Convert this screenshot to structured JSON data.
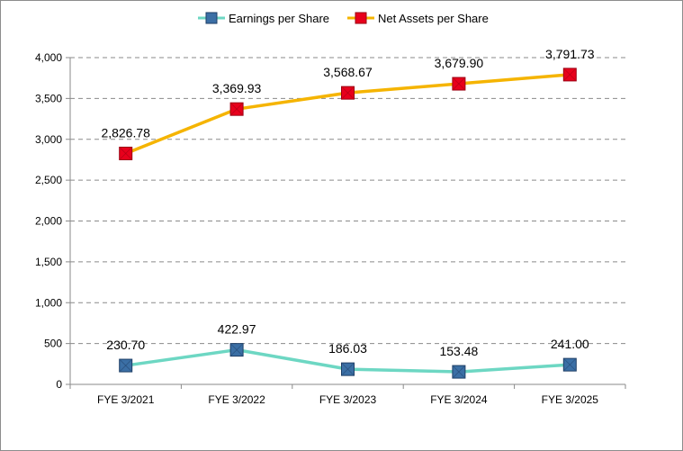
{
  "chart_data": {
    "type": "line",
    "title": "",
    "xlabel": "",
    "ylabel": "",
    "categories": [
      "FYE 3/2021",
      "FYE 3/2022",
      "FYE 3/2023",
      "FYE 3/2024",
      "FYE 3/2025"
    ],
    "ylim": [
      0,
      4000
    ],
    "yticks": [
      0,
      500,
      1000,
      1500,
      2000,
      2500,
      3000,
      3500,
      4000
    ],
    "ytick_labels": [
      "0",
      "500",
      "1,000",
      "1,500",
      "2,000",
      "2,500",
      "3,000",
      "3,500",
      "4,000"
    ],
    "grid": "horizontal dashed",
    "legend_position": "top-center",
    "series": [
      {
        "name": "Earnings per Share",
        "values": [
          230.7,
          422.97,
          186.03,
          153.48,
          241.0
        ],
        "labels": [
          "230.70",
          "422.97",
          "186.03",
          "153.48",
          "241.00"
        ],
        "line_color": "#6dd7c3",
        "marker_color": "#3b6fa5",
        "marker_edge": "#1f3f66"
      },
      {
        "name": "Net Assets per Share",
        "values": [
          2826.78,
          3369.93,
          3568.67,
          3679.9,
          3791.73
        ],
        "labels": [
          "2,826.78",
          "3,369.93",
          "3,568.67",
          "3,679.90",
          "3,791.73"
        ],
        "line_color": "#f5b400",
        "marker_color": "#e8001c",
        "marker_edge": "#9b0012"
      }
    ]
  }
}
